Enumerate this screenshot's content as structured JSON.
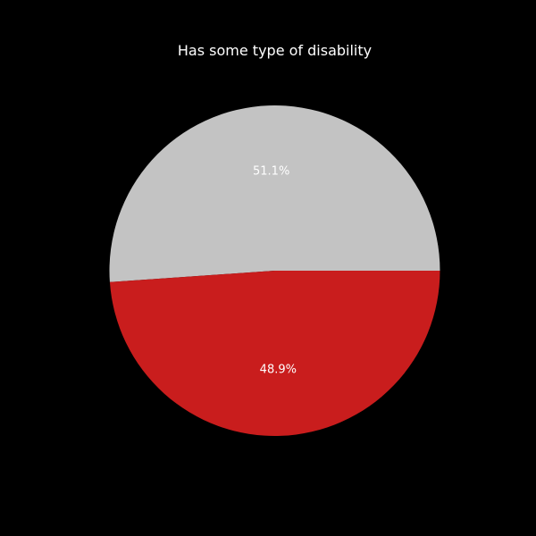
{
  "chart_data": {
    "type": "pie",
    "title": "Has some type of disability",
    "slices": [
      {
        "value": 51.1,
        "label": "51.1%",
        "color": "#c3c3c3"
      },
      {
        "value": 48.9,
        "label": "48.9%",
        "color": "#c91d1d"
      }
    ],
    "start_angle_deg": 0,
    "direction": "counterclockwise",
    "background": "#000000"
  }
}
